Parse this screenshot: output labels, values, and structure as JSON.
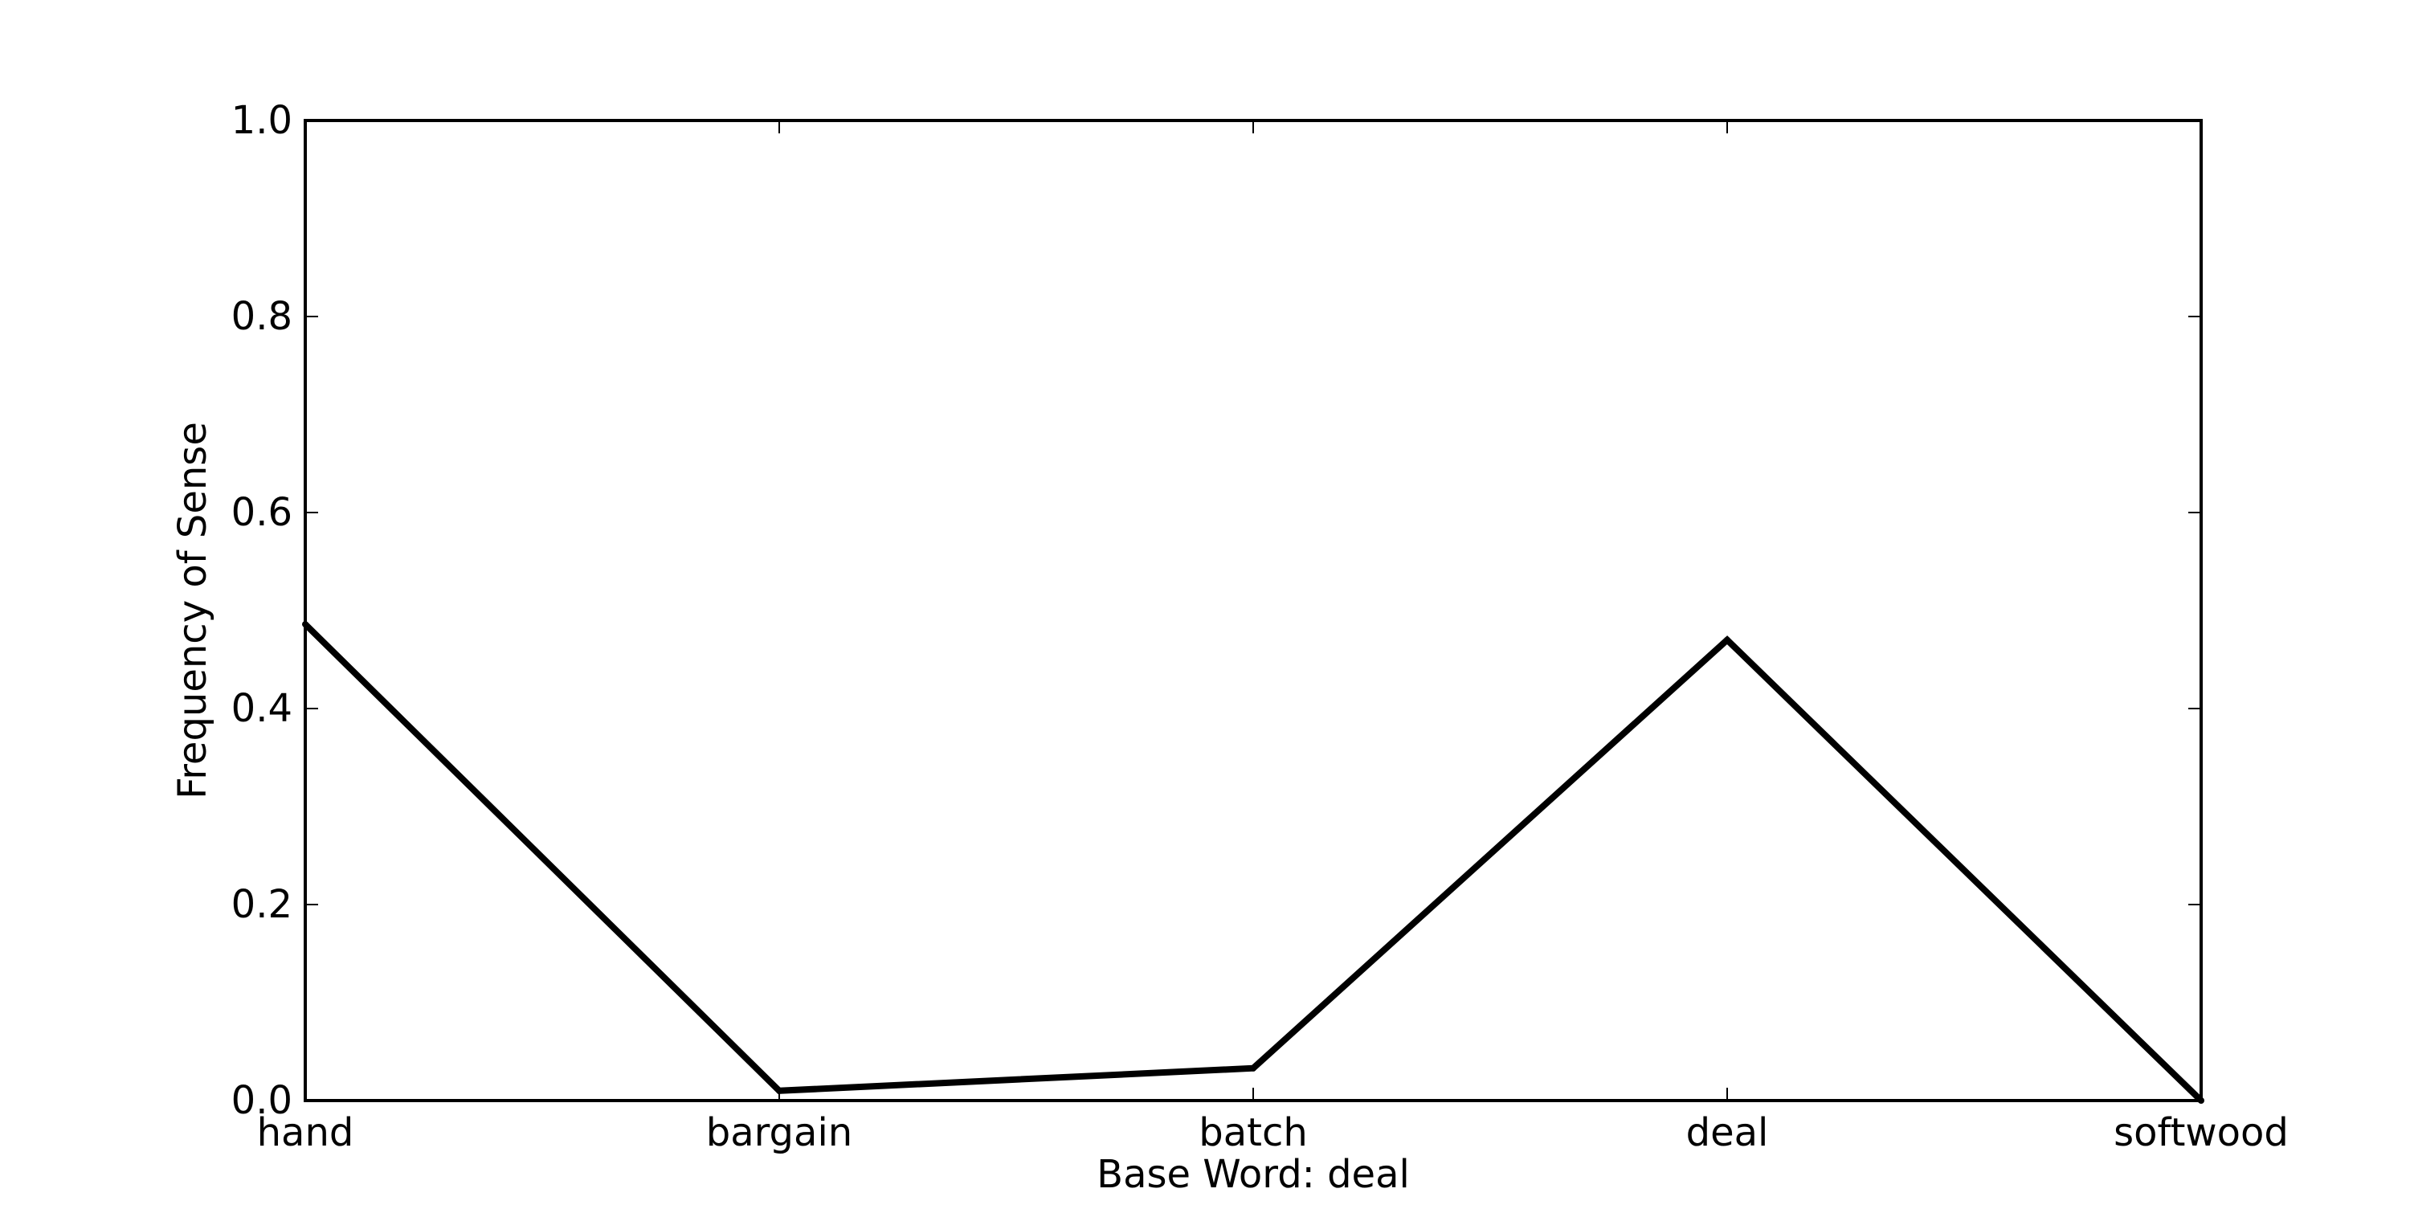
{
  "chart_data": {
    "type": "line",
    "title": "",
    "xlabel": "Base Word: deal",
    "ylabel": "Frequency of Sense",
    "categories": [
      "hand",
      "bargain",
      "batch",
      "deal",
      "softwood"
    ],
    "values": [
      0.486,
      0.01,
      0.033,
      0.47,
      0.0
    ],
    "ylim": [
      0.0,
      1.0
    ],
    "yticks": [
      "0.0",
      "0.2",
      "0.4",
      "0.6",
      "0.8",
      "1.0"
    ],
    "grid": false,
    "line_color": "#000000"
  }
}
